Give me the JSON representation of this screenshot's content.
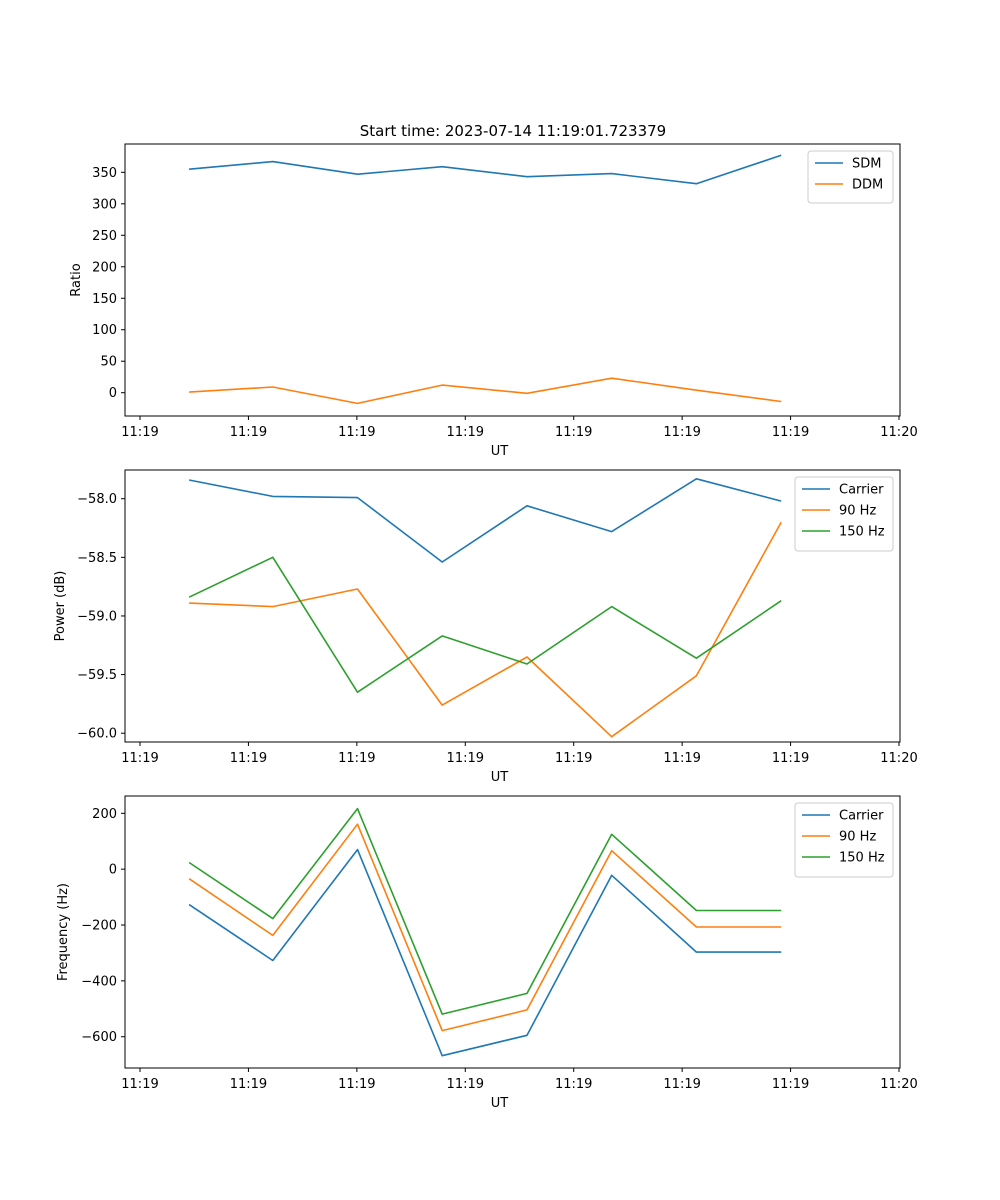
{
  "figure": {
    "title": "Start time: 2023-07-14 11:19:01.723379"
  },
  "chart_data": [
    {
      "type": "line",
      "title": "Start time: 2023-07-14 11:19:01.723379",
      "xlabel": "UT",
      "ylabel": "Ratio",
      "x_ticks": [
        "11:19",
        "11:19",
        "11:19",
        "11:19",
        "11:19",
        "11:19",
        "11:19",
        "11:20"
      ],
      "xlim": [
        0,
        15
      ],
      "ylim": [
        -37,
        395
      ],
      "y_ticks": [
        0,
        50,
        100,
        150,
        200,
        250,
        300,
        350
      ],
      "y_tick_labels": [
        "0",
        "50",
        "100",
        "150",
        "200",
        "250",
        "300",
        "350"
      ],
      "x": [
        1.24,
        2.86,
        4.5,
        6.14,
        7.78,
        9.42,
        11.06,
        12.7
      ],
      "series": [
        {
          "name": "SDM",
          "color": "#1f77b4",
          "values": [
            355,
            367,
            347,
            359,
            343,
            348,
            332,
            377
          ]
        },
        {
          "name": "DDM",
          "color": "#ff7f0e",
          "values": [
            1,
            9,
            -17,
            12,
            -1,
            23,
            4,
            -14
          ]
        }
      ],
      "legend": "upper right"
    },
    {
      "type": "line",
      "title": "",
      "xlabel": "UT",
      "ylabel": "Power (dB)",
      "x_ticks": [
        "11:19",
        "11:19",
        "11:19",
        "11:19",
        "11:19",
        "11:19",
        "11:19",
        "11:20"
      ],
      "xlim": [
        0,
        15
      ],
      "ylim": [
        -60.075,
        -57.755
      ],
      "y_ticks": [
        -60.0,
        -59.5,
        -59.0,
        -58.5,
        -58.0
      ],
      "y_tick_labels": [
        "−60.0",
        "−59.5",
        "−59.0",
        "−58.5",
        "−58.0"
      ],
      "x": [
        1.24,
        2.86,
        4.5,
        6.14,
        7.78,
        9.42,
        11.06,
        12.7
      ],
      "series": [
        {
          "name": "Carrier",
          "color": "#1f77b4",
          "values": [
            -57.84,
            -57.98,
            -57.99,
            -58.54,
            -58.06,
            -58.28,
            -57.83,
            -58.02
          ]
        },
        {
          "name": "90 Hz",
          "color": "#ff7f0e",
          "values": [
            -58.89,
            -58.92,
            -58.77,
            -59.76,
            -59.35,
            -60.03,
            -59.51,
            -58.2
          ]
        },
        {
          "name": "150 Hz",
          "color": "#2ca02c",
          "values": [
            -58.84,
            -58.5,
            -59.65,
            -59.17,
            -59.41,
            -58.92,
            -59.36,
            -58.87
          ]
        }
      ],
      "legend": "upper right"
    },
    {
      "type": "line",
      "title": "",
      "xlabel": "UT",
      "ylabel": "Frequency (Hz)",
      "x_ticks": [
        "11:19",
        "11:19",
        "11:19",
        "11:19",
        "11:19",
        "11:19",
        "11:19",
        "11:20"
      ],
      "xlim": [
        0,
        15
      ],
      "ylim": [
        -712,
        262
      ],
      "y_ticks": [
        -600,
        -400,
        -200,
        0,
        200
      ],
      "y_tick_labels": [
        "−600",
        "−400",
        "−200",
        "0",
        "200"
      ],
      "x": [
        1.24,
        2.86,
        4.5,
        6.14,
        7.78,
        9.42,
        11.06,
        12.7
      ],
      "series": [
        {
          "name": "Carrier",
          "color": "#1f77b4",
          "values": [
            -127,
            -327,
            70,
            -668,
            -595,
            -22,
            -297,
            -297
          ]
        },
        {
          "name": "90 Hz",
          "color": "#ff7f0e",
          "values": [
            -34,
            -237,
            161,
            -578,
            -504,
            66,
            -207,
            -207
          ]
        },
        {
          "name": "150 Hz",
          "color": "#2ca02c",
          "values": [
            24,
            -177,
            217,
            -519,
            -445,
            125,
            -148,
            -148
          ]
        }
      ],
      "legend": "upper right"
    }
  ]
}
